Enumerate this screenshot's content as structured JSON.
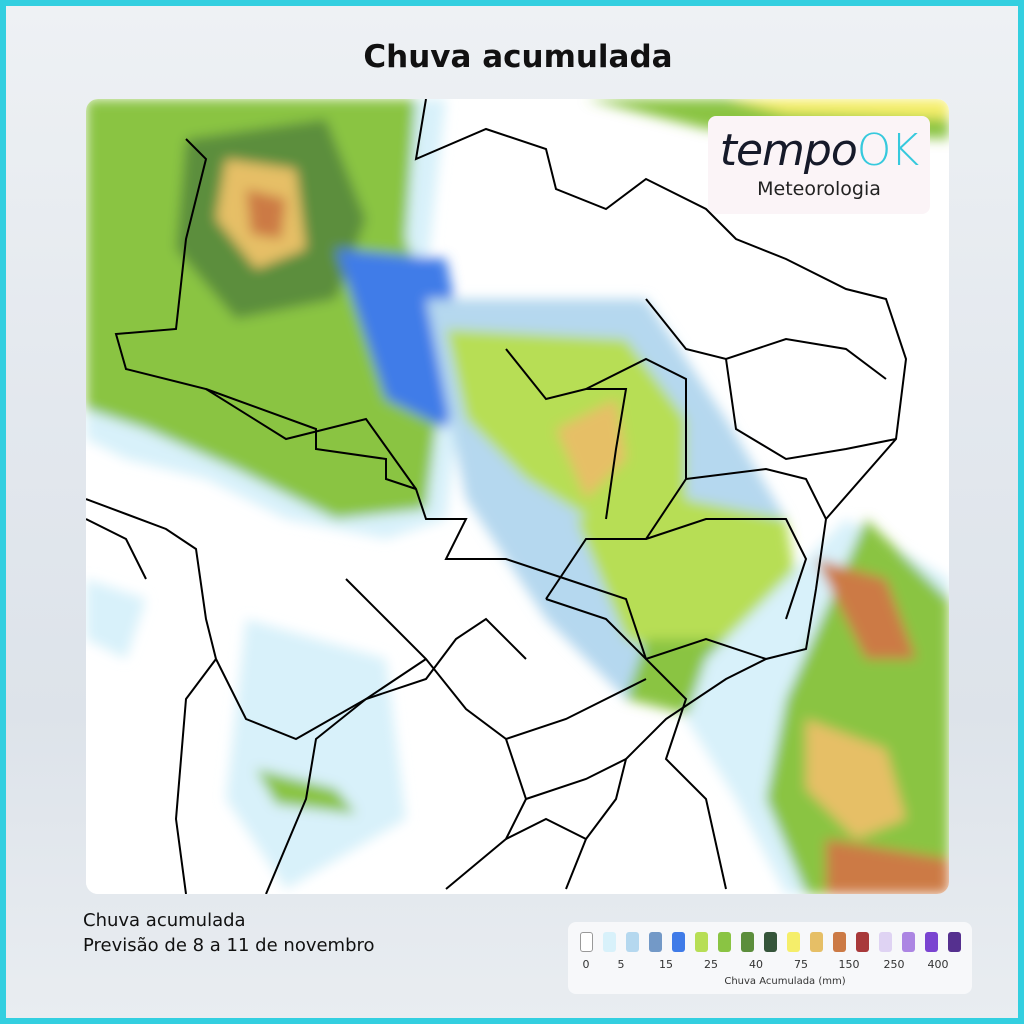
{
  "title": "Chuva acumulada",
  "logo": {
    "brand_main": "tempo",
    "brand_accent": "OK",
    "subtitle": "Meteorologia",
    "accent_color": "#36c9dd"
  },
  "caption": {
    "line1": "Chuva acumulada",
    "line2": "Previsão de 8 a 11 de novembro"
  },
  "legend": {
    "unit": "Chuva Acumulada (mm)",
    "colors": [
      "#ffffff",
      "#d8f1fa",
      "#b5d8ef",
      "#7399c7",
      "#3f7be8",
      "#b7de55",
      "#8ac443",
      "#5c8e3c",
      "#35553a",
      "#f5ee6a",
      "#e6bf66",
      "#cc7a45",
      "#a8393a",
      "#dfd3f3",
      "#ac85e3",
      "#7a44d1",
      "#55308f"
    ],
    "labels": [
      "0",
      "5",
      "15",
      "25",
      "40",
      "75",
      "150",
      "250",
      "400"
    ]
  }
}
